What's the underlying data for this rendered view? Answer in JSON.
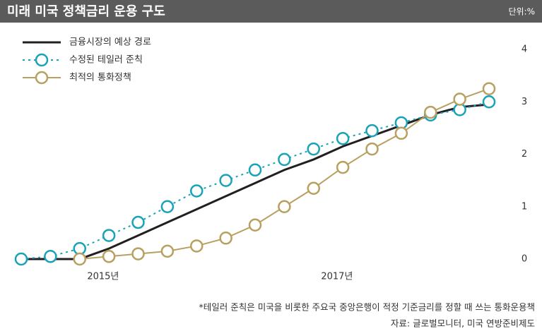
{
  "chart_data": {
    "type": "line",
    "title": "미래 미국 정책금리 운용 구도",
    "unit": "단위:%",
    "x": [
      2014.5,
      2014.75,
      2015,
      2015.25,
      2015.5,
      2015.75,
      2016,
      2016.25,
      2016.5,
      2016.75,
      2017,
      2017.25,
      2017.5,
      2017.75,
      2018,
      2018.25,
      2018.5
    ],
    "xlim": [
      2014.5,
      2018.5
    ],
    "xticks": [
      {
        "value": 2015.2,
        "label": "2015년"
      },
      {
        "value": 2017.2,
        "label": "2017년"
      }
    ],
    "ylim": [
      0,
      4
    ],
    "yticks": [
      0,
      1,
      2,
      3,
      4
    ],
    "series": [
      {
        "name": "금융시장의 예상 경로",
        "color": "#231f20",
        "marker": "none",
        "values": [
          0,
          0,
          0,
          0.2,
          0.45,
          0.7,
          0.95,
          1.2,
          1.45,
          1.7,
          1.9,
          2.15,
          2.35,
          2.55,
          2.75,
          2.9,
          2.95
        ]
      },
      {
        "name": "수정된 테일러 준칙",
        "color": "#1aa3b8",
        "marker": "circle",
        "dash": "dot",
        "values": [
          0,
          0.05,
          0.2,
          0.45,
          0.7,
          1.0,
          1.3,
          1.5,
          1.7,
          1.9,
          2.1,
          2.3,
          2.45,
          2.6,
          2.75,
          2.85,
          3.0
        ]
      },
      {
        "name": "최적의 통화정책",
        "color": "#b8a060",
        "marker": "circle",
        "values": [
          null,
          null,
          0,
          0.05,
          0.1,
          0.15,
          0.25,
          0.4,
          0.65,
          1.0,
          1.35,
          1.75,
          2.1,
          2.4,
          2.8,
          3.05,
          3.25
        ]
      }
    ],
    "footnotes": [
      "*테일러 준칙은 미국을 비롯한 주요국 중앙은행이 적정 기준금리를 정할 때 쓰는 통화운용책",
      "자료: 글로벌모니터, 미국 연방준비제도"
    ]
  }
}
